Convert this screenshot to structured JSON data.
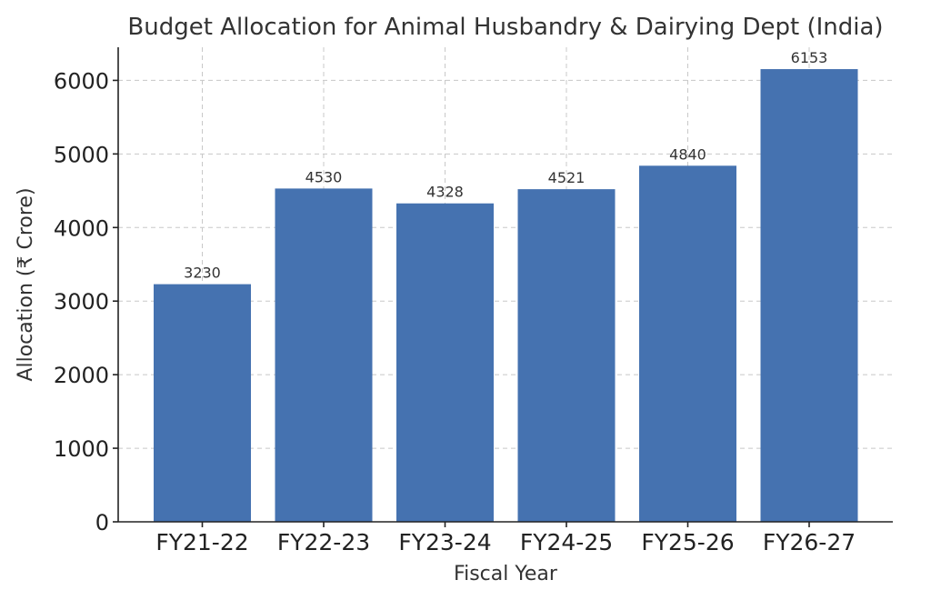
{
  "chart_data": {
    "type": "bar",
    "title": "Budget Allocation for Animal Husbandry & Dairying Dept (India)",
    "xlabel": "Fiscal Year",
    "ylabel": "Allocation (₹ Crore)",
    "categories": [
      "FY21-22",
      "FY22-23",
      "FY23-24",
      "FY24-25",
      "FY25-26",
      "FY26-27"
    ],
    "values": [
      3230,
      4530,
      4328,
      4521,
      4840,
      6153
    ],
    "data_labels": [
      "3230",
      "4530",
      "4328",
      "4521",
      "4840",
      "6153"
    ],
    "ylim": [
      0,
      6450
    ],
    "yticks": [
      0,
      1000,
      2000,
      3000,
      4000,
      5000,
      6000
    ],
    "grid": true,
    "legend": "none",
    "bar_color": "#4572b0"
  }
}
